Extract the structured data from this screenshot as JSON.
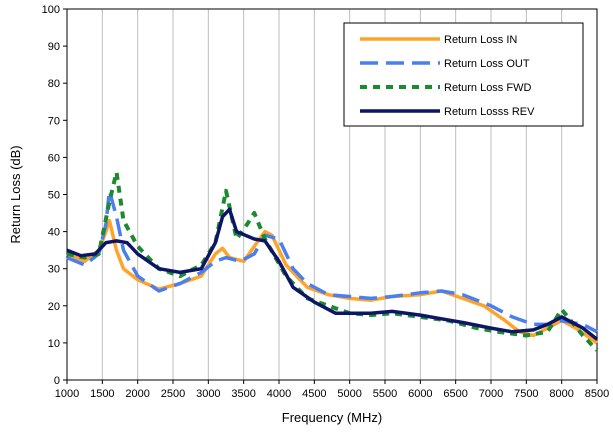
{
  "chart_data": {
    "type": "line",
    "title": "",
    "xlabel": "Frequency (MHz)",
    "ylabel": "Return Loss (dB)",
    "xlim": [
      1000,
      8500
    ],
    "ylim": [
      0,
      100
    ],
    "x_ticks": [
      1000,
      1500,
      2000,
      2500,
      3000,
      3500,
      4000,
      4500,
      5000,
      5500,
      6000,
      6500,
      7000,
      7500,
      8000,
      8500
    ],
    "y_ticks": [
      0,
      10,
      20,
      30,
      40,
      50,
      60,
      70,
      80,
      90,
      100
    ],
    "grid": "vertical",
    "legend_position": "top-right",
    "series": [
      {
        "name": "Return Loss IN",
        "color": "#FFA42B",
        "dash": "solid",
        "points": [
          [
            1000,
            34
          ],
          [
            1250,
            32
          ],
          [
            1450,
            35
          ],
          [
            1550,
            40
          ],
          [
            1600,
            43
          ],
          [
            1700,
            35
          ],
          [
            1800,
            30
          ],
          [
            2000,
            27
          ],
          [
            2300,
            24.5
          ],
          [
            2600,
            26
          ],
          [
            2900,
            28
          ],
          [
            3100,
            34
          ],
          [
            3200,
            35.5
          ],
          [
            3300,
            33
          ],
          [
            3500,
            32
          ],
          [
            3650,
            36
          ],
          [
            3800,
            40
          ],
          [
            3900,
            39
          ],
          [
            4100,
            31
          ],
          [
            4400,
            25
          ],
          [
            4700,
            23
          ],
          [
            5000,
            22
          ],
          [
            5300,
            21.5
          ],
          [
            5600,
            22.5
          ],
          [
            6000,
            23
          ],
          [
            6300,
            24
          ],
          [
            6600,
            22
          ],
          [
            6900,
            20
          ],
          [
            7200,
            16
          ],
          [
            7400,
            13
          ],
          [
            7600,
            12
          ],
          [
            7800,
            14
          ],
          [
            8000,
            16
          ],
          [
            8200,
            14
          ],
          [
            8500,
            10
          ]
        ]
      },
      {
        "name": "Return Loss OUT",
        "color": "#4A7FF0",
        "dash": "18,8",
        "points": [
          [
            1000,
            33
          ],
          [
            1250,
            31
          ],
          [
            1450,
            34
          ],
          [
            1550,
            42
          ],
          [
            1600,
            51
          ],
          [
            1700,
            44
          ],
          [
            1800,
            35
          ],
          [
            2000,
            28
          ],
          [
            2300,
            24
          ],
          [
            2600,
            26
          ],
          [
            2900,
            29
          ],
          [
            3100,
            32
          ],
          [
            3250,
            33
          ],
          [
            3450,
            32
          ],
          [
            3650,
            34
          ],
          [
            3800,
            39
          ],
          [
            4000,
            38
          ],
          [
            4200,
            30
          ],
          [
            4400,
            26
          ],
          [
            4700,
            23
          ],
          [
            5000,
            22.5
          ],
          [
            5300,
            22
          ],
          [
            5600,
            22.5
          ],
          [
            6000,
            23.5
          ],
          [
            6300,
            24
          ],
          [
            6600,
            23
          ],
          [
            7000,
            20
          ],
          [
            7300,
            17
          ],
          [
            7600,
            15
          ],
          [
            7800,
            15
          ],
          [
            8000,
            16
          ],
          [
            8300,
            15
          ],
          [
            8500,
            13
          ]
        ]
      },
      {
        "name": "Return Loss FWD",
        "color": "#1C8A2E",
        "dash": "7,6",
        "points": [
          [
            1000,
            34
          ],
          [
            1250,
            33
          ],
          [
            1450,
            34
          ],
          [
            1600,
            48
          ],
          [
            1700,
            56
          ],
          [
            1800,
            43
          ],
          [
            2000,
            36
          ],
          [
            2300,
            30
          ],
          [
            2600,
            28
          ],
          [
            2900,
            31
          ],
          [
            3100,
            37
          ],
          [
            3250,
            51
          ],
          [
            3400,
            38
          ],
          [
            3550,
            42
          ],
          [
            3650,
            45
          ],
          [
            3800,
            38
          ],
          [
            4100,
            28
          ],
          [
            4400,
            22
          ],
          [
            4700,
            20
          ],
          [
            5000,
            18
          ],
          [
            5300,
            17.5
          ],
          [
            5600,
            18
          ],
          [
            6000,
            17
          ],
          [
            6400,
            16
          ],
          [
            6800,
            14
          ],
          [
            7100,
            13
          ],
          [
            7500,
            12
          ],
          [
            7800,
            13
          ],
          [
            8000,
            19
          ],
          [
            8300,
            12
          ],
          [
            8500,
            8
          ]
        ]
      },
      {
        "name": "Return Losss REV",
        "color": "#0D1566",
        "dash": "solid",
        "points": [
          [
            1000,
            35
          ],
          [
            1200,
            33.5
          ],
          [
            1400,
            34
          ],
          [
            1550,
            37
          ],
          [
            1700,
            37.5
          ],
          [
            1850,
            37
          ],
          [
            2000,
            34
          ],
          [
            2300,
            30
          ],
          [
            2600,
            29
          ],
          [
            2900,
            30
          ],
          [
            3100,
            37
          ],
          [
            3200,
            44
          ],
          [
            3300,
            46
          ],
          [
            3400,
            40
          ],
          [
            3650,
            38
          ],
          [
            3800,
            37.5
          ],
          [
            4000,
            32
          ],
          [
            4200,
            25
          ],
          [
            4500,
            21
          ],
          [
            4800,
            18
          ],
          [
            5000,
            18
          ],
          [
            5300,
            18
          ],
          [
            5600,
            18.5
          ],
          [
            6000,
            17.5
          ],
          [
            6300,
            16.5
          ],
          [
            6600,
            15.5
          ],
          [
            7000,
            14
          ],
          [
            7300,
            13
          ],
          [
            7600,
            13.5
          ],
          [
            7800,
            15
          ],
          [
            8000,
            17
          ],
          [
            8300,
            14
          ],
          [
            8500,
            11
          ]
        ]
      }
    ]
  }
}
